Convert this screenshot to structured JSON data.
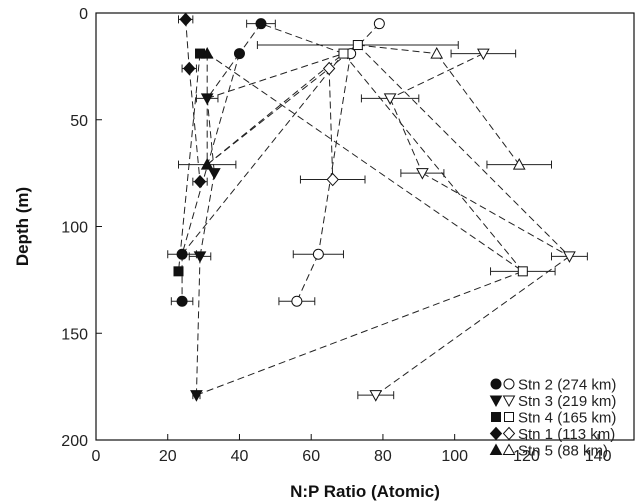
{
  "chart_data": {
    "type": "scatter",
    "xlabel": "N:P Ratio (Atomic)",
    "ylabel": "Depth (m)",
    "xlim": [
      0,
      150
    ],
    "ylim": [
      0,
      200
    ],
    "y_axis_inverted": true,
    "xticks": [
      0,
      20,
      40,
      60,
      80,
      100,
      120,
      140
    ],
    "yticks": [
      0,
      50,
      100,
      150,
      200
    ],
    "legend_position": "bottom-right",
    "series": [
      {
        "name": "Stn 2 (274 km)",
        "marker": "circle",
        "points": [
          {
            "x": 46,
            "y": 5,
            "filled": true,
            "err": 4
          },
          {
            "x": 40,
            "y": 19,
            "filled": true,
            "err": 0
          },
          {
            "x": 24,
            "y": 113,
            "filled": true,
            "err": 4
          },
          {
            "x": 24,
            "y": 135,
            "filled": true,
            "err": 3
          },
          {
            "x": 79,
            "y": 5,
            "filled": false,
            "err": 0
          },
          {
            "x": 71,
            "y": 19,
            "filled": false,
            "err": 0
          },
          {
            "x": 62,
            "y": 113,
            "filled": false,
            "err": 7
          },
          {
            "x": 56,
            "y": 135,
            "filled": false,
            "err": 5
          }
        ],
        "lines": [
          [
            0,
            1,
            2,
            3
          ],
          [
            4,
            5,
            6,
            7
          ]
        ]
      },
      {
        "name": "Stn 3 (219 km)",
        "marker": "triangle-down",
        "points": [
          {
            "x": 31,
            "y": 40,
            "filled": true,
            "err": 3
          },
          {
            "x": 33,
            "y": 75,
            "filled": true,
            "err": 0
          },
          {
            "x": 29,
            "y": 114,
            "filled": true,
            "err": 3
          },
          {
            "x": 28,
            "y": 179,
            "filled": true,
            "err": 1
          },
          {
            "x": 108,
            "y": 19,
            "filled": false,
            "err": 9
          },
          {
            "x": 82,
            "y": 40,
            "filled": false,
            "err": 8
          },
          {
            "x": 91,
            "y": 75,
            "filled": false,
            "err": 6
          },
          {
            "x": 132,
            "y": 114,
            "filled": false,
            "err": 5
          },
          {
            "x": 78,
            "y": 179,
            "filled": false,
            "err": 5
          }
        ],
        "lines": [
          [
            0,
            1,
            2,
            3
          ],
          [
            4,
            5,
            6,
            7,
            8
          ]
        ]
      },
      {
        "name": "Stn 4 (165 km)",
        "marker": "square",
        "points": [
          {
            "x": 29,
            "y": 19,
            "filled": true,
            "err": 0
          },
          {
            "x": 23,
            "y": 121,
            "filled": true,
            "err": 1
          },
          {
            "x": 73,
            "y": 15,
            "filled": false,
            "err": 28
          },
          {
            "x": 69,
            "y": 19,
            "filled": false,
            "err": 0
          },
          {
            "x": 119,
            "y": 121,
            "filled": false,
            "err": 9
          }
        ],
        "lines": [
          [
            0,
            1
          ],
          [
            2,
            3,
            4
          ]
        ]
      },
      {
        "name": "Stn 1 (113 km)",
        "marker": "diamond",
        "points": [
          {
            "x": 25,
            "y": 3,
            "filled": true,
            "err": 2
          },
          {
            "x": 26,
            "y": 26,
            "filled": true,
            "err": 2
          },
          {
            "x": 29,
            "y": 79,
            "filled": true,
            "err": 2
          },
          {
            "x": 65,
            "y": 26,
            "filled": false,
            "err": 0
          },
          {
            "x": 66,
            "y": 78,
            "filled": false,
            "err": 9
          }
        ],
        "lines": [
          [
            0,
            1,
            2
          ],
          [
            3,
            4
          ]
        ]
      },
      {
        "name": "Stn 5 (88 km)",
        "marker": "triangle-up",
        "points": [
          {
            "x": 31,
            "y": 19,
            "filled": true,
            "err": 0
          },
          {
            "x": 31,
            "y": 71,
            "filled": true,
            "err": 8
          },
          {
            "x": 95,
            "y": 19,
            "filled": false,
            "err": 0
          },
          {
            "x": 118,
            "y": 71,
            "filled": false,
            "err": 9
          }
        ],
        "lines": [
          [
            0,
            1
          ],
          [
            2,
            3
          ]
        ]
      }
    ],
    "cross_lines": [
      {
        "from": [
          "Stn 2 (274 km)",
          1
        ],
        "to": [
          "Stn 3 (219 km)",
          0
        ]
      },
      {
        "from": [
          "Stn 3 (219 km)",
          0
        ],
        "to": [
          "Stn 4 (165 km)",
          3
        ]
      },
      {
        "from": [
          "Stn 4 (165 km)",
          3
        ],
        "to": [
          "Stn 2 (274 km)",
          0
        ]
      },
      {
        "from": [
          "Stn 4 (165 km)",
          2
        ],
        "to": [
          "Stn 1 (113 km)",
          3
        ]
      },
      {
        "from": [
          "Stn 4 (165 km)",
          2
        ],
        "to": [
          "Stn 5 (88 km)",
          2
        ]
      },
      {
        "from": [
          "Stn 5 (88 km)",
          1
        ],
        "to": [
          "Stn 1 (113 km)",
          3
        ]
      },
      {
        "from": [
          "Stn 5 (88 km)",
          1
        ],
        "to": [
          "Stn 4 (165 km)",
          3
        ]
      },
      {
        "from": [
          "Stn 2 (274 km)",
          2
        ],
        "to": [
          "Stn 4 (165 km)",
          3
        ]
      },
      {
        "from": [
          "Stn 4 (165 km)",
          2
        ],
        "to": [
          "Stn 3 (219 km)",
          7
        ]
      },
      {
        "from": [
          "Stn 5 (88 km)",
          0
        ],
        "to": [
          "Stn 4 (165 km)",
          4
        ]
      },
      {
        "from": [
          "Stn 3 (219 km)",
          3
        ],
        "to": [
          "Stn 4 (165 km)",
          4
        ]
      }
    ]
  }
}
